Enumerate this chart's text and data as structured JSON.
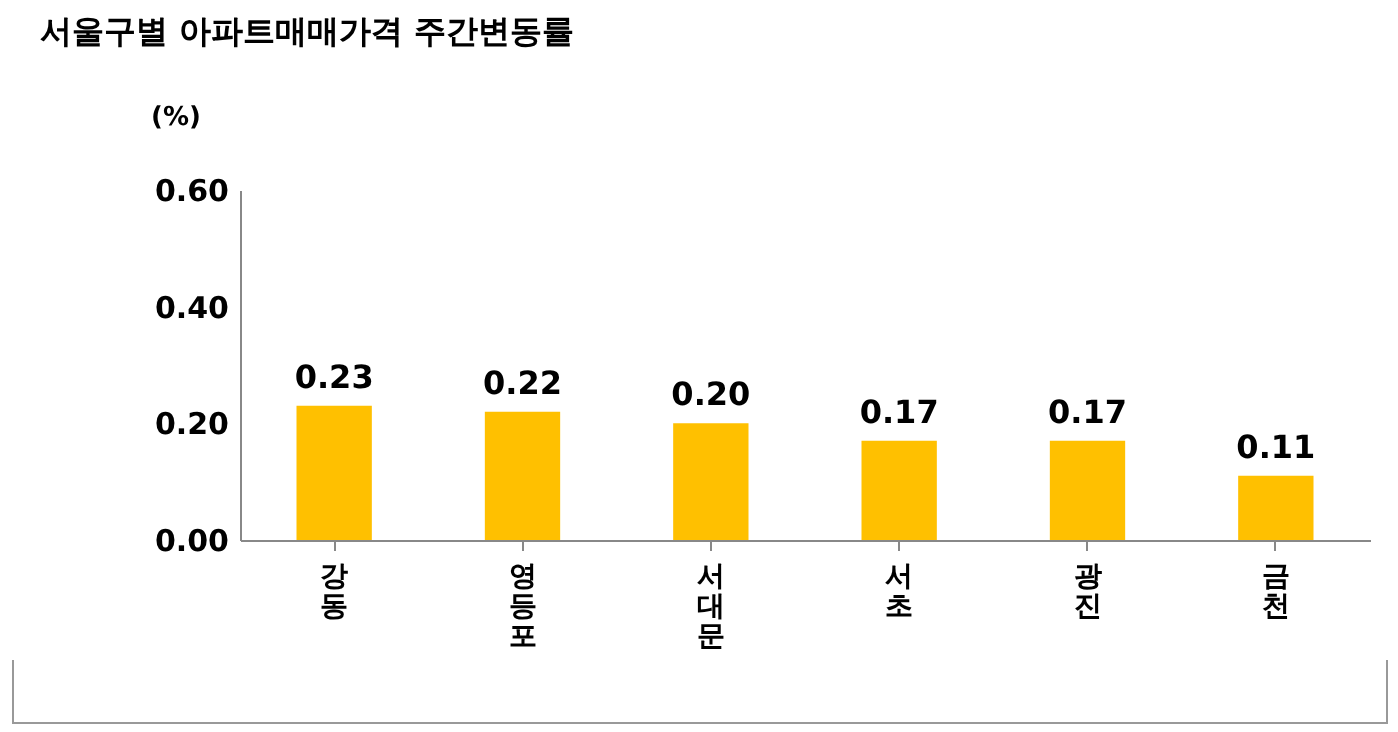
{
  "chart_data": {
    "type": "bar",
    "title": "서울구별 아파트매매가격 주간변동률",
    "ylabel": "(%)",
    "categories": [
      "강동",
      "영등포",
      "서대문",
      "서초",
      "광진",
      "금천"
    ],
    "values": [
      0.23,
      0.22,
      0.2,
      0.17,
      0.17,
      0.11
    ],
    "value_labels": [
      "0.23",
      "0.22",
      "0.20",
      "0.17",
      "0.17",
      "0.11"
    ],
    "color": "#ffc000",
    "ylim": [
      0,
      0.6
    ],
    "yticks": [
      {
        "value": 0,
        "label": "0.00"
      },
      {
        "value": 0.2,
        "label": "0.20"
      },
      {
        "value": 0.4,
        "label": "0.40"
      },
      {
        "value": 0.6,
        "label": "0.60"
      }
    ],
    "grid": false
  }
}
